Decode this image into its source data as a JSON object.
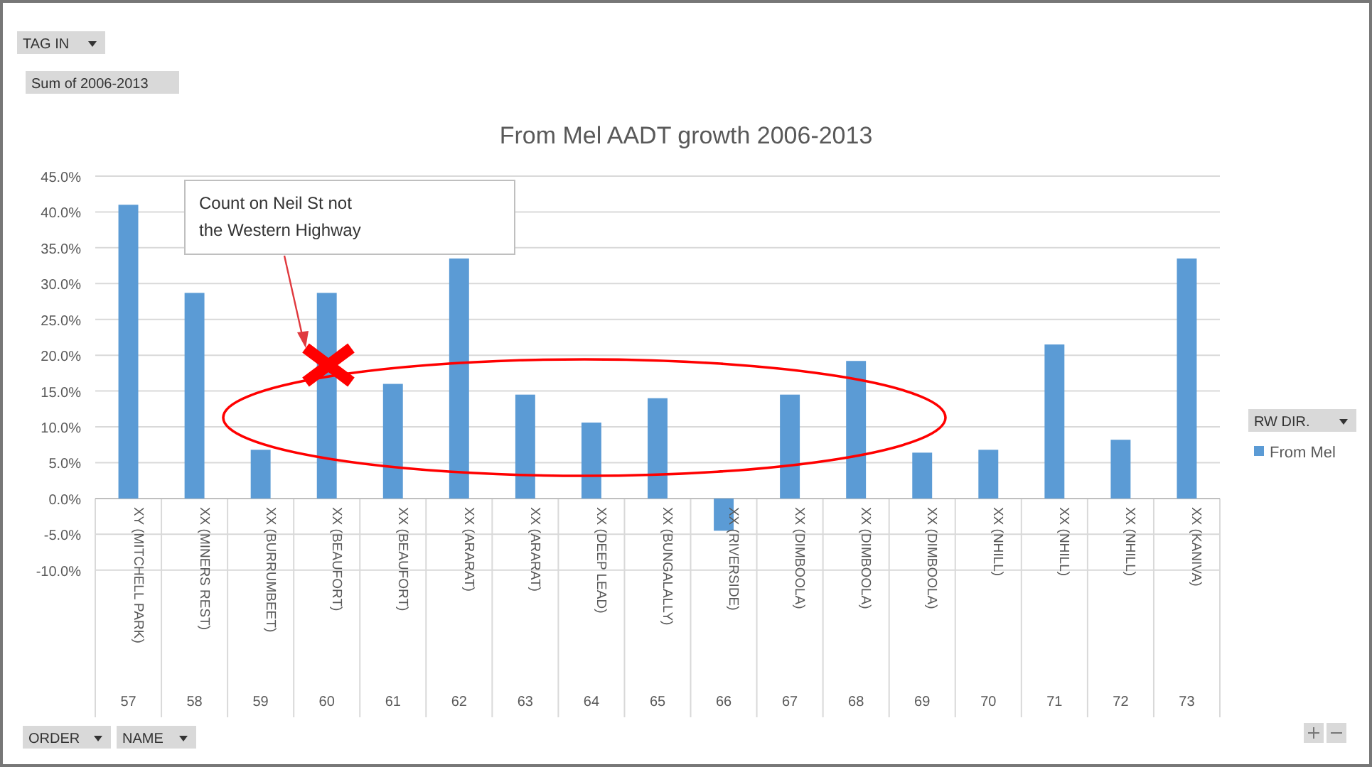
{
  "chart_data": {
    "type": "bar",
    "title": "From Mel AADT growth 2006-2013",
    "categories": [
      "XY (MITCHELL PARK)",
      "XX (MINERS REST)",
      "XX (BURRUMBEET)",
      "XX (BEAUFORT)",
      "XX (BEAUFORT)",
      "XX (ARARAT)",
      "XX (ARARAT)",
      "XX (DEEP LEAD)",
      "XX (BUNGALALLY)",
      "XX (RIVERSIDE)",
      "XX (DIMBOOLA)",
      "XX (DIMBOOLA)",
      "XX (DIMBOOLA)",
      "XX (NHILL)",
      "XX (NHILL)",
      "XX (NHILL)",
      "XX (KANIVA)"
    ],
    "series": [
      {
        "name": "From Mel",
        "color": "#5b9bd5",
        "values": [
          41.0,
          28.7,
          6.8,
          28.7,
          16.0,
          33.5,
          14.5,
          10.6,
          14.0,
          -4.5,
          14.5,
          19.2,
          6.4,
          6.8,
          21.5,
          8.2,
          33.5
        ]
      }
    ],
    "ylim": [
      -10,
      45
    ],
    "yticks": [
      {
        "value": -10,
        "label": "-10.0%"
      },
      {
        "value": -5,
        "label": "-5.0%"
      },
      {
        "value": 0,
        "label": "0.0%"
      },
      {
        "value": 5,
        "label": "5.0%"
      },
      {
        "value": 10,
        "label": "10.0%"
      },
      {
        "value": 15,
        "label": "15.0%"
      },
      {
        "value": 20,
        "label": "20.0%"
      },
      {
        "value": 25,
        "label": "25.0%"
      },
      {
        "value": 30,
        "label": "30.0%"
      },
      {
        "value": 35,
        "label": "35.0%"
      },
      {
        "value": 40,
        "label": "40.0%"
      },
      {
        "value": 45,
        "label": "45.0%"
      }
    ],
    "grid": "y",
    "legend": "right",
    "legend_title": "RW DIR.",
    "annotations": [
      "TAG IN",
      "Sum of 2006-2013",
      "Count on Neil St not the Western Highway",
      "ORDER",
      "NAME",
      "57",
      "58",
      "59",
      "60",
      "61",
      "62",
      "63",
      "64",
      "65",
      "66",
      "67",
      "68",
      "69",
      "70",
      "71",
      "72",
      "73"
    ]
  }
}
